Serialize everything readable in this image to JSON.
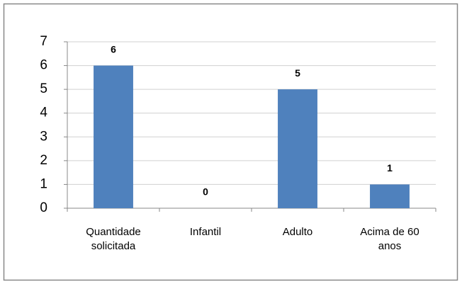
{
  "chart_data": {
    "type": "bar",
    "categories": [
      "Quantidade solicitada",
      "Infantil",
      "Adulto",
      "Acima de 60 anos"
    ],
    "values": [
      6,
      0,
      5,
      1
    ],
    "color": "#4f81bd",
    "ylim": [
      0,
      7
    ],
    "yticks": [
      0,
      1,
      2,
      3,
      4,
      5,
      6,
      7
    ],
    "grid": true
  }
}
